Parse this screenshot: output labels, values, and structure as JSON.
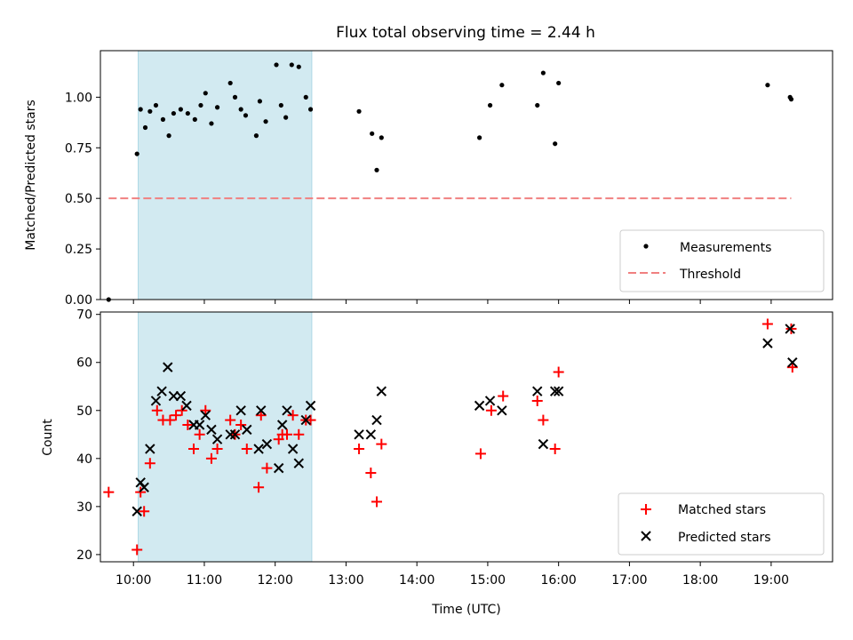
{
  "chart_data": [
    {
      "type": "scatter",
      "title": "Flux total observing time = 2.44 h",
      "xlabel": "",
      "ylabel": "Matched/Predicted stars",
      "xlim": [
        "09:32",
        "19:52"
      ],
      "ylim": [
        0,
        1.23
      ],
      "yticks": [
        "0.00",
        "0.25",
        "0.50",
        "0.75",
        "1.00"
      ],
      "grid": false,
      "legend": "lower-right",
      "shaded_span": [
        "10:04",
        "12:31"
      ],
      "colors": {
        "shade": "#add8e6",
        "measurements": "#000000",
        "threshold": "#f08080"
      },
      "series": [
        {
          "name": "Measurements",
          "marker": "dot",
          "points": [
            [
              "09:39",
              0.0
            ],
            [
              "10:03",
              0.72
            ],
            [
              "10:06",
              0.94
            ],
            [
              "10:10",
              0.85
            ],
            [
              "10:14",
              0.93
            ],
            [
              "10:19",
              0.96
            ],
            [
              "10:25",
              0.89
            ],
            [
              "10:30",
              0.81
            ],
            [
              "10:34",
              0.92
            ],
            [
              "10:40",
              0.94
            ],
            [
              "10:46",
              0.92
            ],
            [
              "10:52",
              0.89
            ],
            [
              "10:57",
              0.96
            ],
            [
              "11:01",
              1.02
            ],
            [
              "11:06",
              0.87
            ],
            [
              "11:11",
              0.95
            ],
            [
              "11:22",
              1.07
            ],
            [
              "11:26",
              1.0
            ],
            [
              "11:31",
              0.94
            ],
            [
              "11:35",
              0.91
            ],
            [
              "11:44",
              0.81
            ],
            [
              "11:47",
              0.98
            ],
            [
              "11:52",
              0.88
            ],
            [
              "12:01",
              1.16
            ],
            [
              "12:05",
              0.96
            ],
            [
              "12:09",
              0.9
            ],
            [
              "12:14",
              1.16
            ],
            [
              "12:20",
              1.15
            ],
            [
              "12:26",
              1.0
            ],
            [
              "12:30",
              0.94
            ],
            [
              "13:11",
              0.93
            ],
            [
              "13:22",
              0.82
            ],
            [
              "13:26",
              0.64
            ],
            [
              "13:30",
              0.8
            ],
            [
              "14:53",
              0.8
            ],
            [
              "15:02",
              0.96
            ],
            [
              "15:12",
              1.06
            ],
            [
              "15:42",
              0.96
            ],
            [
              "15:47",
              1.12
            ],
            [
              "15:57",
              0.77
            ],
            [
              "16:00",
              1.07
            ],
            [
              "18:57",
              1.06
            ],
            [
              "19:16",
              1.0
            ],
            [
              "19:17",
              0.99
            ]
          ]
        },
        {
          "name": "Threshold",
          "style": "dashed",
          "points": [
            [
              "09:39",
              0.5
            ],
            [
              "19:17",
              0.5
            ]
          ]
        }
      ]
    },
    {
      "type": "scatter",
      "title": "",
      "xlabel": "Time (UTC)",
      "ylabel": "Count",
      "xlim": [
        "09:32",
        "19:52"
      ],
      "ylim": [
        18.5,
        70.5
      ],
      "xticks": [
        "10:00",
        "11:00",
        "12:00",
        "13:00",
        "14:00",
        "15:00",
        "16:00",
        "17:00",
        "18:00",
        "19:00"
      ],
      "yticks": [
        "20",
        "30",
        "40",
        "50",
        "60",
        "70"
      ],
      "grid": false,
      "legend": "lower-right",
      "shaded_span": [
        "10:04",
        "12:31"
      ],
      "colors": {
        "shade": "#add8e6",
        "matched": "#ff0000",
        "predicted": "#000000"
      },
      "series": [
        {
          "name": "Matched stars",
          "marker": "plus",
          "points": [
            [
              "09:39",
              33
            ],
            [
              "10:03",
              21
            ],
            [
              "10:06",
              33
            ],
            [
              "10:09",
              29
            ],
            [
              "10:14",
              39
            ],
            [
              "10:20",
              50
            ],
            [
              "10:25",
              48
            ],
            [
              "10:31",
              48
            ],
            [
              "10:36",
              49
            ],
            [
              "10:41",
              50
            ],
            [
              "10:46",
              47
            ],
            [
              "10:51",
              42
            ],
            [
              "10:56",
              45
            ],
            [
              "11:01",
              50
            ],
            [
              "11:06",
              40
            ],
            [
              "11:11",
              42
            ],
            [
              "11:22",
              48
            ],
            [
              "11:26",
              45
            ],
            [
              "11:31",
              47
            ],
            [
              "11:36",
              42
            ],
            [
              "11:46",
              34
            ],
            [
              "11:48",
              49
            ],
            [
              "11:53",
              38
            ],
            [
              "12:03",
              44
            ],
            [
              "12:06",
              45
            ],
            [
              "12:10",
              45
            ],
            [
              "12:15",
              49
            ],
            [
              "12:20",
              45
            ],
            [
              "12:26",
              48
            ],
            [
              "12:30",
              48
            ],
            [
              "13:11",
              42
            ],
            [
              "13:21",
              37
            ],
            [
              "13:26",
              31
            ],
            [
              "13:30",
              43
            ],
            [
              "14:54",
              41
            ],
            [
              "15:03",
              50
            ],
            [
              "15:13",
              53
            ],
            [
              "15:42",
              52
            ],
            [
              "15:47",
              48
            ],
            [
              "15:57",
              42
            ],
            [
              "16:00",
              58
            ],
            [
              "18:57",
              68
            ],
            [
              "19:17",
              67
            ],
            [
              "19:18",
              59
            ]
          ]
        },
        {
          "name": "Predicted stars",
          "marker": "x",
          "points": [
            [
              "10:03",
              29
            ],
            [
              "10:06",
              35
            ],
            [
              "10:09",
              34
            ],
            [
              "10:14",
              42
            ],
            [
              "10:19",
              52
            ],
            [
              "10:24",
              54
            ],
            [
              "10:29",
              59
            ],
            [
              "10:34",
              53
            ],
            [
              "10:40",
              53
            ],
            [
              "10:45",
              51
            ],
            [
              "10:51",
              47
            ],
            [
              "10:56",
              47
            ],
            [
              "11:01",
              49
            ],
            [
              "11:06",
              46
            ],
            [
              "11:11",
              44
            ],
            [
              "11:22",
              45
            ],
            [
              "11:26",
              45
            ],
            [
              "11:31",
              50
            ],
            [
              "11:36",
              46
            ],
            [
              "11:46",
              42
            ],
            [
              "11:48",
              50
            ],
            [
              "11:53",
              43
            ],
            [
              "12:03",
              38
            ],
            [
              "12:06",
              47
            ],
            [
              "12:10",
              50
            ],
            [
              "12:15",
              42
            ],
            [
              "12:20",
              39
            ],
            [
              "12:26",
              48
            ],
            [
              "12:30",
              51
            ],
            [
              "13:11",
              45
            ],
            [
              "13:21",
              45
            ],
            [
              "13:26",
              48
            ],
            [
              "13:30",
              54
            ],
            [
              "14:53",
              51
            ],
            [
              "15:02",
              52
            ],
            [
              "15:12",
              50
            ],
            [
              "15:42",
              54
            ],
            [
              "15:47",
              43
            ],
            [
              "15:57",
              54
            ],
            [
              "16:00",
              54
            ],
            [
              "18:57",
              64
            ],
            [
              "19:16",
              67
            ],
            [
              "19:18",
              60
            ]
          ]
        }
      ]
    }
  ]
}
